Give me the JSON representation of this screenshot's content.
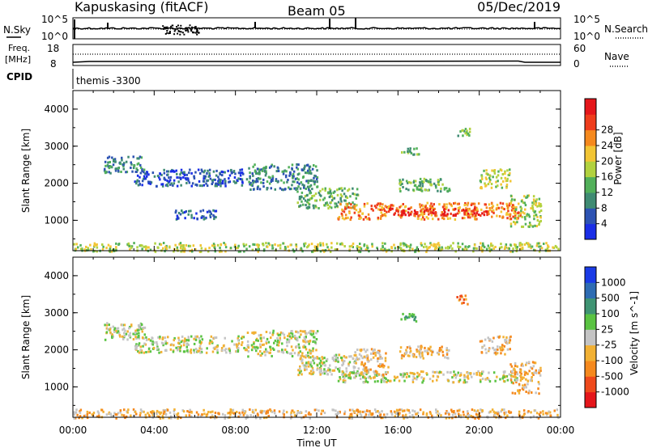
{
  "header": {
    "station": "Kapuskasing (fitACF)",
    "beam": "Beam 05",
    "date": "05/Dec/2019"
  },
  "nsky": {
    "label": "N.Sky",
    "right_label": "N.Search",
    "ticks_left": [
      "10^5",
      "10^0"
    ],
    "ticks_right": [
      "10^5",
      "10^0"
    ]
  },
  "freq": {
    "label_line1": "Freq.",
    "label_line2": "[MHz]",
    "right_label": "Nave",
    "ticks_left": [
      "18",
      "8"
    ],
    "ticks_right": [
      "60",
      "0"
    ]
  },
  "cpid": {
    "label": "CPID",
    "value": "themis -3300"
  },
  "chart_data": [
    {
      "type": "heatmap",
      "name": "power",
      "ylabel": "Slant Range [km]",
      "xlabel": "Time UT",
      "ylim": [
        180,
        4500
      ],
      "xlim": [
        0,
        24
      ],
      "x_ticks": [
        "00:00",
        "04:00",
        "08:00",
        "12:00",
        "16:00",
        "20:00",
        "00:00"
      ],
      "y_ticks": [
        "1000",
        "2000",
        "3000",
        "4000"
      ],
      "colorbar": {
        "label": "Power [dB]",
        "ticks": [
          "4",
          "8",
          "12",
          "16",
          "20",
          "24",
          "28"
        ],
        "colors": [
          "#1a2ee6",
          "#2d53b3",
          "#3f8b73",
          "#52b05a",
          "#b2d23f",
          "#f2c534",
          "#f5891e",
          "#ef3d1c",
          "#e5161b"
        ]
      },
      "echo_regions": [
        {
          "t0": 1.5,
          "t1": 3.5,
          "r0": 2300,
          "r1": 2750,
          "level": 2
        },
        {
          "t0": 3.0,
          "t1": 8.5,
          "r0": 1950,
          "r1": 2400,
          "level": 1
        },
        {
          "t0": 5.0,
          "t1": 7.0,
          "r0": 1050,
          "r1": 1300,
          "level": 1
        },
        {
          "t0": 8.5,
          "t1": 12.0,
          "r0": 1850,
          "r1": 2550,
          "level": 2
        },
        {
          "t0": 11.0,
          "t1": 14.0,
          "r0": 1350,
          "r1": 1900,
          "level": 3
        },
        {
          "t0": 13.0,
          "t1": 22.0,
          "r0": 1050,
          "r1": 1500,
          "level": 6
        },
        {
          "t0": 15.5,
          "t1": 20.5,
          "r0": 1150,
          "r1": 1350,
          "level": 8
        },
        {
          "t0": 16.0,
          "t1": 18.5,
          "r0": 1800,
          "r1": 2150,
          "level": 3
        },
        {
          "t0": 16.0,
          "t1": 17.0,
          "r0": 2800,
          "r1": 3000,
          "level": 3
        },
        {
          "t0": 18.8,
          "t1": 19.5,
          "r0": 3250,
          "r1": 3500,
          "level": 3
        },
        {
          "t0": 20.0,
          "t1": 21.5,
          "r0": 1900,
          "r1": 2400,
          "level": 4
        },
        {
          "t0": 21.5,
          "t1": 23.0,
          "r0": 850,
          "r1": 1700,
          "level": 4
        },
        {
          "t0": 0.0,
          "t1": 24.0,
          "r0": 180,
          "r1": 420,
          "level": 4
        }
      ]
    },
    {
      "type": "heatmap",
      "name": "velocity",
      "ylabel": "Slant Range [km]",
      "xlabel": "Time UT",
      "ylim": [
        180,
        4500
      ],
      "xlim": [
        0,
        24
      ],
      "x_ticks": [
        "00:00",
        "04:00",
        "08:00",
        "12:00",
        "16:00",
        "20:00",
        "00:00"
      ],
      "y_ticks": [
        "1000",
        "2000",
        "3000",
        "4000"
      ],
      "colorbar": {
        "label": "Velocity [m s^-1]",
        "ticks": [
          "1000",
          "500",
          "100",
          "25",
          "-25",
          "-100",
          "-500",
          "-1000"
        ],
        "colors": [
          "#1a3be6",
          "#2e6cb3",
          "#3f9473",
          "#5ac342",
          "#c4c4c4",
          "#f2b134",
          "#f5891e",
          "#ef4a1c",
          "#e5161b"
        ]
      },
      "echo_regions": [
        {
          "t0": 1.5,
          "t1": 3.5,
          "r0": 2300,
          "r1": 2750,
          "level": 4
        },
        {
          "t0": 3.0,
          "t1": 8.5,
          "r0": 1950,
          "r1": 2400,
          "level": 4
        },
        {
          "t0": 8.5,
          "t1": 12.0,
          "r0": 1850,
          "r1": 2550,
          "level": 4
        },
        {
          "t0": 11.0,
          "t1": 14.0,
          "r0": 1350,
          "r1": 1900,
          "level": 4
        },
        {
          "t0": 13.0,
          "t1": 22.0,
          "r0": 1150,
          "r1": 1450,
          "level": 4
        },
        {
          "t0": 13.8,
          "t1": 15.5,
          "r0": 1350,
          "r1": 2050,
          "level": 5
        },
        {
          "t0": 16.0,
          "t1": 18.5,
          "r0": 1800,
          "r1": 2150,
          "level": 5
        },
        {
          "t0": 16.0,
          "t1": 17.0,
          "r0": 2800,
          "r1": 3000,
          "level": 2
        },
        {
          "t0": 18.8,
          "t1": 19.5,
          "r0": 3250,
          "r1": 3500,
          "level": 6
        },
        {
          "t0": 20.0,
          "t1": 21.5,
          "r0": 1900,
          "r1": 2400,
          "level": 5
        },
        {
          "t0": 21.5,
          "t1": 23.0,
          "r0": 850,
          "r1": 1700,
          "level": 5
        },
        {
          "t0": 0.0,
          "t1": 24.0,
          "r0": 180,
          "r1": 420,
          "level": 5
        }
      ]
    }
  ]
}
